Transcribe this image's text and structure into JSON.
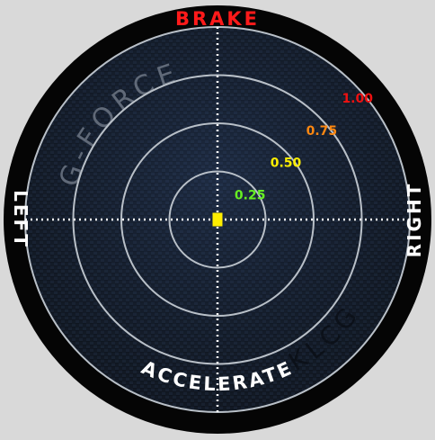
{
  "gauge": {
    "labels": {
      "top": "BRAKE",
      "bottom": "ACCELERATE",
      "left": "LEFT",
      "right": "RIGHT"
    },
    "title_watermark": "G-FORCE",
    "brand_watermark": "KLCG",
    "rings": [
      {
        "label": "0.25",
        "value": 0.25,
        "color": "#66ee22"
      },
      {
        "label": "0.50",
        "value": 0.5,
        "color": "#ffee00"
      },
      {
        "label": "0.75",
        "value": 0.75,
        "color": "#ff8811"
      },
      {
        "label": "1.00",
        "value": 1.0,
        "color": "#ee1111"
      }
    ],
    "marker": {
      "lateral_g": 0.0,
      "longitudinal_g": 0.0,
      "color": "#ffee00"
    },
    "colors": {
      "bezel": "#050505",
      "face": "#1a2638",
      "grid": "#b9c0c8",
      "top_label": "#ff1a1a",
      "side_labels": "#ffffff"
    }
  }
}
